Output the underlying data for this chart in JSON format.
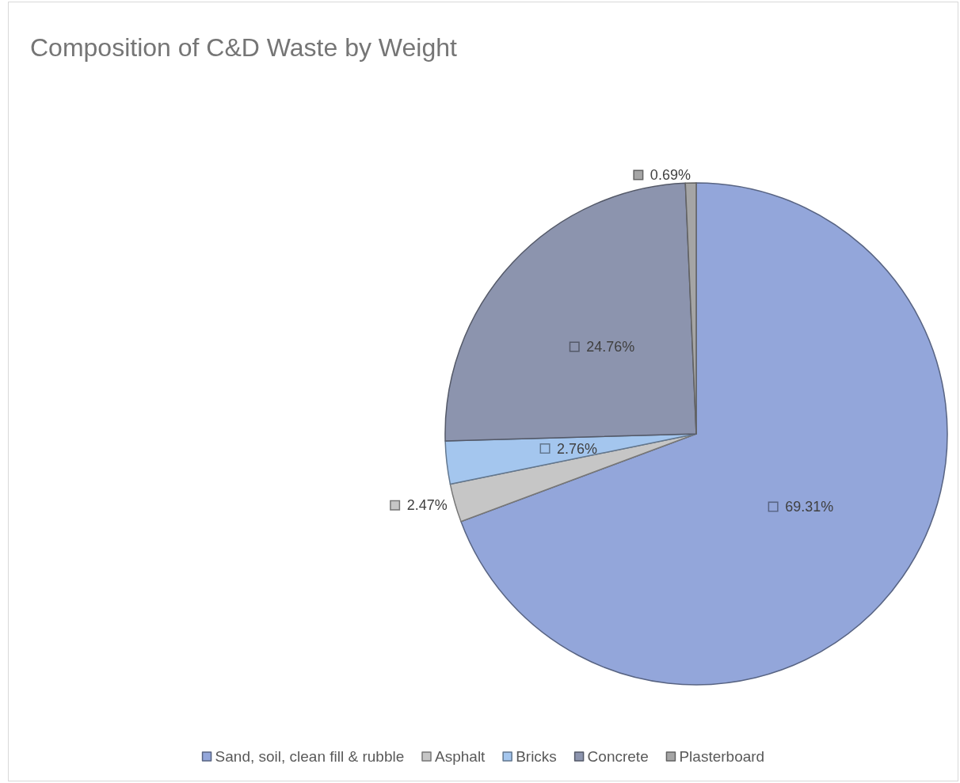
{
  "chart_data": {
    "type": "pie",
    "title": "Composition of C&D Waste by Weight",
    "categories": [
      "Sand, soil, clean fill & rubble",
      "Asphalt",
      "Bricks",
      "Concrete",
      "Plasterboard"
    ],
    "values": [
      69.31,
      2.47,
      2.76,
      24.76,
      0.69
    ],
    "value_labels": [
      "69.31%",
      "2.47%",
      "2.76%",
      "24.76%",
      "0.69%"
    ],
    "colors": [
      "#93a6da",
      "#c6c6c6",
      "#a4c6ee",
      "#8c94ae",
      "#a5a5a5"
    ],
    "legend": "bottom"
  }
}
